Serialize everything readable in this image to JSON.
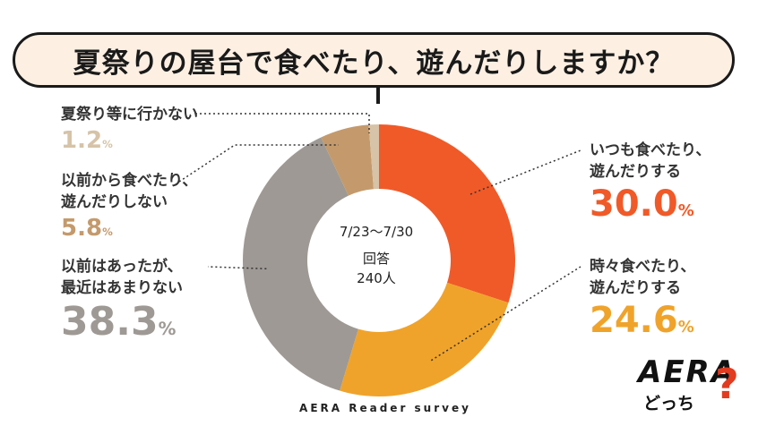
{
  "title": "夏祭りの屋台で食べたり、遊んだりしますか？",
  "center": {
    "period": "7/23～7/30",
    "answer_label": "回答",
    "count": "240人"
  },
  "footer": "AERA Reader survey",
  "logo": {
    "name": "AERA",
    "sub": "どっち",
    "mark": "?"
  },
  "chart_data": {
    "type": "pie",
    "donut": true,
    "slices": [
      {
        "label_lines": [
          "いつも食べたり、",
          "遊んだりする"
        ],
        "value": 30.0,
        "display": "30.0",
        "color": "#f05a28"
      },
      {
        "label_lines": [
          "時々食べたり、",
          "遊んだりする"
        ],
        "value": 24.6,
        "display": "24.6",
        "color": "#f0a32a"
      },
      {
        "label_lines": [
          "以前はあったが、",
          "最近はあまりない"
        ],
        "value": 38.3,
        "display": "38.3",
        "color": "#9e9994"
      },
      {
        "label_lines": [
          "以前から食べたり、",
          "遊んだりしない"
        ],
        "value": 5.8,
        "display": "5.8",
        "color": "#c49a6c"
      },
      {
        "label_lines": [
          "夏祭り等に行かない"
        ],
        "value": 1.2,
        "display": "1.2",
        "color": "#d6c3a8"
      }
    ],
    "unit": "%"
  }
}
